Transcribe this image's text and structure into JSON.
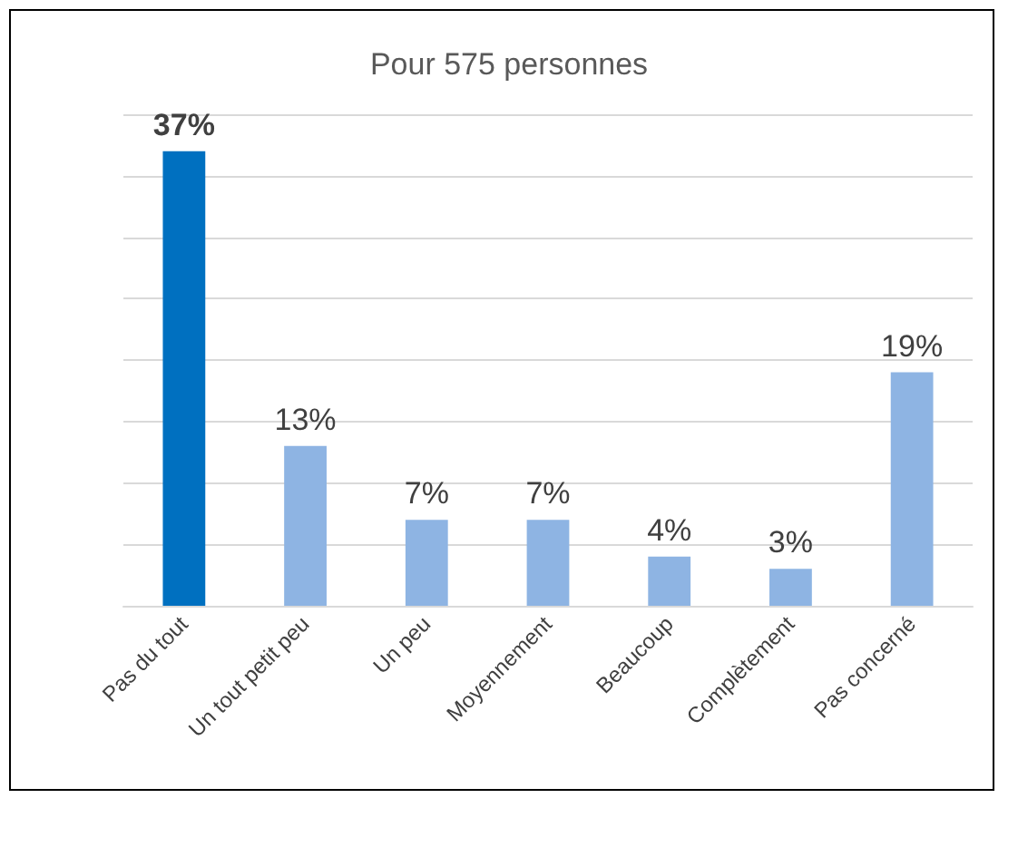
{
  "chart_data": {
    "type": "bar",
    "title": "Pour 575 personnes",
    "categories": [
      "Pas du tout",
      "Un tout petit peu",
      "Un peu",
      "Moyennement",
      "Beaucoup",
      "Complètement",
      "Pas concerné"
    ],
    "values": [
      37,
      13,
      7,
      7,
      4,
      3,
      19
    ],
    "value_labels": [
      "37%",
      "13%",
      "7%",
      "7%",
      "4%",
      "3%",
      "19%"
    ],
    "colors": [
      "#0070c0",
      "#8eb4e3",
      "#8eb4e3",
      "#8eb4e3",
      "#8eb4e3",
      "#8eb4e3",
      "#8eb4e3"
    ],
    "ylim": [
      0,
      40
    ],
    "yticks": [
      {
        "value": 0,
        "label": null
      },
      {
        "value": 5,
        "label": null
      },
      {
        "value": 10,
        "label": null
      },
      {
        "value": 15,
        "label": null
      },
      {
        "value": 20,
        "label": null
      },
      {
        "value": 25,
        "label": null
      },
      {
        "value": 30,
        "label": null
      },
      {
        "value": 35,
        "label": null
      },
      {
        "value": 40,
        "label": null
      }
    ],
    "grid": "y",
    "tick_labels": "x"
  }
}
